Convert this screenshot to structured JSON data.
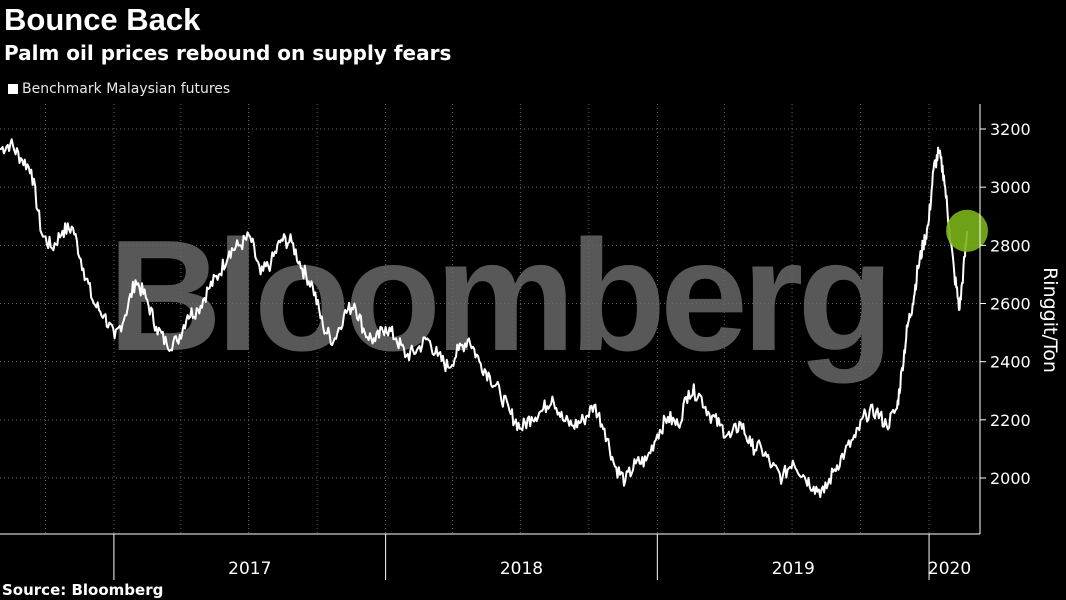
{
  "title": "Bounce Back",
  "subtitle": "Palm oil prices rebound on supply fears",
  "legend": {
    "label": "Benchmark Malaysian futures"
  },
  "source": "Source: Bloomberg",
  "watermark": "Bloomberg",
  "colors": {
    "background": "#000000",
    "line": "#ffffff",
    "grid": "#666666",
    "highlight": "#7ab317"
  },
  "chart_data": {
    "type": "line",
    "title": "Bounce Back",
    "subtitle": "Palm oil prices rebound on supply fears",
    "ylabel": "Ringgit/Ton",
    "xlabel": "",
    "ylim": [
      1900,
      3300
    ],
    "yticks": [
      2000,
      2200,
      2400,
      2600,
      2800,
      3000,
      3200
    ],
    "xlim": [
      "2016-08-01",
      "2020-02-25"
    ],
    "x_year_labels": [
      "2017",
      "2018",
      "2019",
      "2020"
    ],
    "legend_position": "top-left",
    "grid": true,
    "highlight_point": {
      "x": "2020-02-21",
      "y": 2850
    },
    "series": [
      {
        "name": "Benchmark Malaysian futures",
        "points": [
          [
            "2016-08-01",
            3130
          ],
          [
            "2016-08-15",
            3150
          ],
          [
            "2016-08-29",
            3100
          ],
          [
            "2016-09-12",
            3060
          ],
          [
            "2016-09-26",
            2840
          ],
          [
            "2016-10-10",
            2790
          ],
          [
            "2016-10-24",
            2850
          ],
          [
            "2016-11-07",
            2860
          ],
          [
            "2016-11-21",
            2720
          ],
          [
            "2016-12-05",
            2600
          ],
          [
            "2016-12-19",
            2560
          ],
          [
            "2017-01-02",
            2480
          ],
          [
            "2017-01-16",
            2560
          ],
          [
            "2017-01-30",
            2680
          ],
          [
            "2017-02-13",
            2620
          ],
          [
            "2017-02-27",
            2520
          ],
          [
            "2017-03-13",
            2460
          ],
          [
            "2017-03-27",
            2470
          ],
          [
            "2017-04-10",
            2560
          ],
          [
            "2017-04-24",
            2580
          ],
          [
            "2017-05-08",
            2650
          ],
          [
            "2017-05-22",
            2700
          ],
          [
            "2017-06-05",
            2780
          ],
          [
            "2017-06-19",
            2800
          ],
          [
            "2017-07-03",
            2830
          ],
          [
            "2017-07-17",
            2700
          ],
          [
            "2017-07-31",
            2740
          ],
          [
            "2017-08-14",
            2820
          ],
          [
            "2017-08-28",
            2810
          ],
          [
            "2017-09-11",
            2720
          ],
          [
            "2017-09-25",
            2660
          ],
          [
            "2017-10-09",
            2520
          ],
          [
            "2017-10-23",
            2470
          ],
          [
            "2017-11-06",
            2560
          ],
          [
            "2017-11-20",
            2600
          ],
          [
            "2017-12-04",
            2500
          ],
          [
            "2017-12-18",
            2470
          ],
          [
            "2018-01-01",
            2520
          ],
          [
            "2018-01-15",
            2480
          ],
          [
            "2018-01-29",
            2420
          ],
          [
            "2018-02-12",
            2440
          ],
          [
            "2018-02-26",
            2480
          ],
          [
            "2018-03-12",
            2420
          ],
          [
            "2018-03-26",
            2380
          ],
          [
            "2018-04-09",
            2440
          ],
          [
            "2018-04-23",
            2480
          ],
          [
            "2018-05-07",
            2400
          ],
          [
            "2018-05-21",
            2350
          ],
          [
            "2018-06-04",
            2290
          ],
          [
            "2018-06-18",
            2220
          ],
          [
            "2018-07-02",
            2170
          ],
          [
            "2018-07-16",
            2210
          ],
          [
            "2018-07-30",
            2230
          ],
          [
            "2018-08-13",
            2280
          ],
          [
            "2018-08-27",
            2200
          ],
          [
            "2018-09-10",
            2180
          ],
          [
            "2018-09-24",
            2200
          ],
          [
            "2018-10-08",
            2250
          ],
          [
            "2018-10-22",
            2170
          ],
          [
            "2018-11-05",
            2040
          ],
          [
            "2018-11-19",
            1990
          ],
          [
            "2018-12-03",
            2050
          ],
          [
            "2018-12-17",
            2060
          ],
          [
            "2019-01-01",
            2150
          ],
          [
            "2019-01-15",
            2210
          ],
          [
            "2019-01-29",
            2180
          ],
          [
            "2019-02-12",
            2300
          ],
          [
            "2019-02-26",
            2290
          ],
          [
            "2019-03-12",
            2220
          ],
          [
            "2019-03-26",
            2180
          ],
          [
            "2019-04-09",
            2140
          ],
          [
            "2019-04-23",
            2190
          ],
          [
            "2019-05-07",
            2110
          ],
          [
            "2019-05-21",
            2100
          ],
          [
            "2019-06-04",
            2040
          ],
          [
            "2019-06-18",
            2000
          ],
          [
            "2019-07-02",
            2060
          ],
          [
            "2019-07-16",
            2010
          ],
          [
            "2019-07-30",
            1970
          ],
          [
            "2019-08-13",
            1950
          ],
          [
            "2019-08-27",
            2030
          ],
          [
            "2019-09-10",
            2090
          ],
          [
            "2019-09-24",
            2140
          ],
          [
            "2019-10-08",
            2220
          ],
          [
            "2019-10-22",
            2230
          ],
          [
            "2019-11-05",
            2180
          ],
          [
            "2019-11-19",
            2240
          ],
          [
            "2019-11-26",
            2380
          ],
          [
            "2019-12-03",
            2520
          ],
          [
            "2019-12-10",
            2600
          ],
          [
            "2019-12-17",
            2720
          ],
          [
            "2019-12-24",
            2800
          ],
          [
            "2019-12-31",
            2870
          ],
          [
            "2020-01-07",
            3060
          ],
          [
            "2020-01-14",
            3120
          ],
          [
            "2020-01-21",
            3040
          ],
          [
            "2020-01-28",
            2860
          ],
          [
            "2020-02-04",
            2700
          ],
          [
            "2020-02-11",
            2580
          ],
          [
            "2020-02-18",
            2760
          ],
          [
            "2020-02-21",
            2850
          ]
        ]
      }
    ]
  }
}
